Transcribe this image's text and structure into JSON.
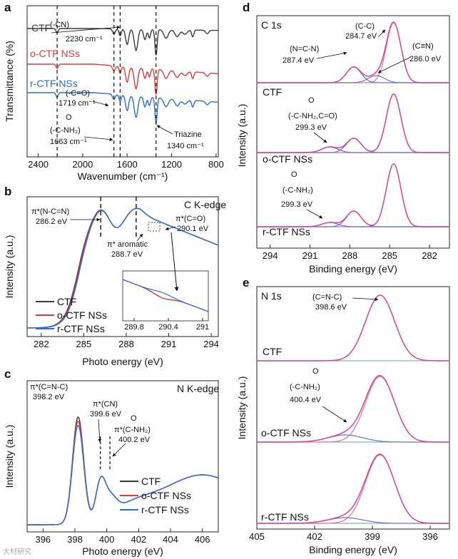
{
  "watermark": "大材研究",
  "colors": {
    "CTF": "#3a3a3a",
    "o-CTF NSs": "#e03b3b",
    "r-CTF NSs": "#2c6fd1",
    "fit_pink": "#d874a8",
    "fit_blue": "#6a6fd8",
    "base_green": "#5fae8a"
  },
  "chart_data": [
    {
      "panel": "a",
      "type": "line",
      "xlabel": "Wavenumber (cm⁻¹)",
      "ylabel": "Transmittance (%)",
      "xlim": [
        2500,
        780
      ],
      "xticks": [
        2400,
        2000,
        1600,
        1200,
        800
      ],
      "series": [
        {
          "name": "CTF",
          "offset": 0.8
        },
        {
          "name": "o-CTF NSs",
          "offset": 0.55
        },
        {
          "name": "r-CTF NSs",
          "offset": 0.3
        }
      ],
      "dashed_lines": [
        2230,
        1719,
        1663,
        1340
      ],
      "annotations": [
        {
          "text": "(-CN)",
          "x": 2230
        },
        {
          "text": "2230 cm⁻¹",
          "x": 2230
        },
        {
          "text": "(-C=O)",
          "x": 1719
        },
        {
          "text": "1719 cm⁻¹",
          "x": 1719
        },
        {
          "text": "O",
          "x": 1663
        },
        {
          "text": "(-C-NH₂)",
          "x": 1663
        },
        {
          "text": "1663 cm⁻¹",
          "x": 1663
        },
        {
          "text": "Triazine",
          "x": 1340
        },
        {
          "text": "1340 cm⁻¹",
          "x": 1340
        }
      ]
    },
    {
      "panel": "b",
      "type": "line",
      "title": "C K-edge",
      "xlabel": "Photo energy (eV)",
      "ylabel": "Intensity (a.u.)",
      "xlim": [
        281,
        294.5
      ],
      "xticks": [
        282,
        285,
        288,
        291,
        294
      ],
      "series": [
        {
          "name": "CTF"
        },
        {
          "name": "o-CTF NSs"
        },
        {
          "name": "r-CTF NSs"
        }
      ],
      "dashed_lines": [
        286.2,
        288.7
      ],
      "annotations": [
        {
          "text": "π*(N-C=N)"
        },
        {
          "text": "286.2 eV"
        },
        {
          "text": "π* aromatic"
        },
        {
          "text": "288.7 eV"
        },
        {
          "text": "π*(C=O)"
        },
        {
          "text": "290.1 eV"
        }
      ],
      "inset": {
        "xticks": [
          289.8,
          290.4,
          291
        ]
      }
    },
    {
      "panel": "c",
      "type": "line",
      "title": "N K-edge",
      "xlabel": "Photo energy (eV)",
      "ylabel": "Intensity (a.u.)",
      "xlim": [
        395,
        407
      ],
      "xticks": [
        396,
        398,
        400,
        402,
        404,
        406
      ],
      "series": [
        {
          "name": "CTF"
        },
        {
          "name": "o-CTF NSs"
        },
        {
          "name": "r-CTF NSs"
        }
      ],
      "dashed_lines": [
        399.6,
        400.2
      ],
      "annotations": [
        {
          "text": "π*(C=N-C)"
        },
        {
          "text": "398.2 eV"
        },
        {
          "text": "π*(CN)"
        },
        {
          "text": "399.6 eV"
        },
        {
          "text": "O"
        },
        {
          "text": "π*(C-NH₂)"
        },
        {
          "text": "400.2 eV"
        }
      ]
    },
    {
      "panel": "d",
      "type": "line",
      "title": "C 1s",
      "xlabel": "Binding energy (eV)",
      "ylabel": "Intensity (a.u.)",
      "xlim": [
        295,
        280.5
      ],
      "xticks": [
        294,
        291,
        288,
        285,
        282
      ],
      "stacks": [
        "CTF",
        "o-CTF NSs",
        "r-CTF NSs"
      ],
      "peaks": [
        284.7,
        286.0,
        287.4,
        299.3
      ],
      "annotations": [
        {
          "text": "(C-C)"
        },
        {
          "text": "284.7 eV"
        },
        {
          "text": "(N=C-N)"
        },
        {
          "text": "287.4 eV"
        },
        {
          "text": "(C≡N)"
        },
        {
          "text": "286.0 eV"
        },
        {
          "text": "O"
        },
        {
          "text": "(-C-NH₂,C=O)"
        },
        {
          "text": "299.3 eV"
        },
        {
          "text": "O"
        },
        {
          "text": "(-C-NH₂)"
        },
        {
          "text": "299.3 eV"
        }
      ]
    },
    {
      "panel": "e",
      "type": "line",
      "title": "N 1s",
      "xlabel": "Binding energy (eV)",
      "ylabel": "Intensity (a.u.)",
      "xlim": [
        405,
        395
      ],
      "xticks": [
        405,
        402,
        399,
        396
      ],
      "stacks": [
        "CTF",
        "o-CTF NSs",
        "r-CTF NSs"
      ],
      "peaks": [
        398.6,
        400.4
      ],
      "annotations": [
        {
          "text": "(C=N-C)"
        },
        {
          "text": "398.6 eV"
        },
        {
          "text": "O"
        },
        {
          "text": "(-C-NH₂)"
        },
        {
          "text": "400.4 eV"
        }
      ]
    }
  ]
}
